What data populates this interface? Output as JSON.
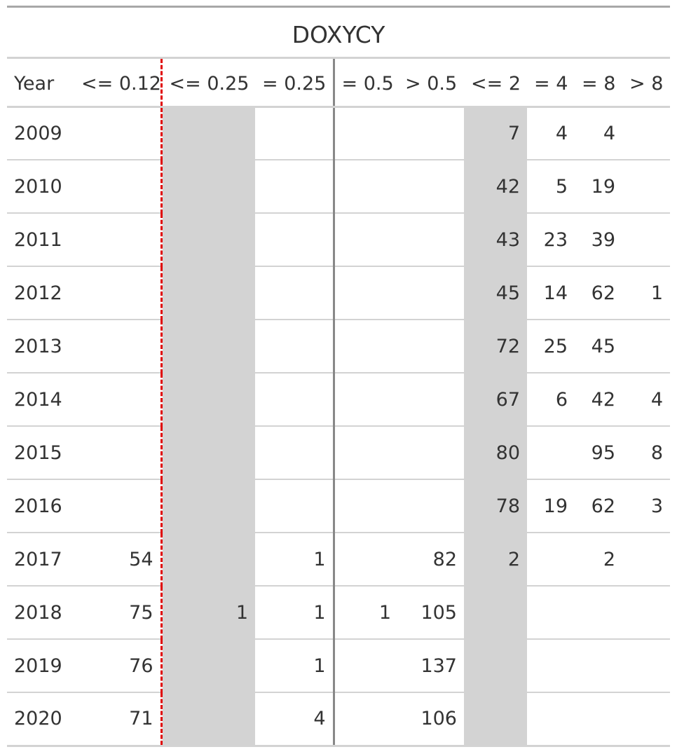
{
  "title": "DOXYCY",
  "columns": [
    "Year",
    "<= 0.12",
    "<= 0.25",
    "= 0.25",
    "= 0.5",
    "> 0.5",
    "<= 2",
    "= 4",
    "= 8",
    "> 8"
  ],
  "rows": [
    [
      "2009",
      "",
      "",
      "",
      "",
      "",
      "7",
      "4",
      "4",
      ""
    ],
    [
      "2010",
      "",
      "",
      "",
      "",
      "",
      "42",
      "5",
      "19",
      ""
    ],
    [
      "2011",
      "",
      "",
      "",
      "",
      "",
      "43",
      "23",
      "39",
      ""
    ],
    [
      "2012",
      "",
      "",
      "",
      "",
      "",
      "45",
      "14",
      "62",
      "1"
    ],
    [
      "2013",
      "",
      "",
      "",
      "",
      "",
      "72",
      "25",
      "45",
      ""
    ],
    [
      "2014",
      "",
      "",
      "",
      "",
      "",
      "67",
      "6",
      "42",
      "4"
    ],
    [
      "2015",
      "",
      "",
      "",
      "",
      "",
      "80",
      "",
      "95",
      "8"
    ],
    [
      "2016",
      "",
      "",
      "",
      "",
      "",
      "78",
      "19",
      "62",
      "3"
    ],
    [
      "2017",
      "54",
      "",
      "1",
      "",
      "82",
      "2",
      "",
      "2",
      ""
    ],
    [
      "2018",
      "75",
      "1",
      "1",
      "1",
      "105",
      "",
      "",
      "",
      ""
    ],
    [
      "2019",
      "76",
      "",
      "1",
      "",
      "137",
      "",
      "",
      "",
      ""
    ],
    [
      "2020",
      "71",
      "",
      "4",
      "",
      "106",
      "",
      "",
      "",
      ""
    ]
  ],
  "style": {
    "shaded_columns": [
      "<= 0.25",
      "<= 2"
    ],
    "shade_color": "#d3d3d3",
    "breakpoint_line_color": "#e00000",
    "breakpoint_line_style": "dashed",
    "divider_line_color": "#888888"
  }
}
